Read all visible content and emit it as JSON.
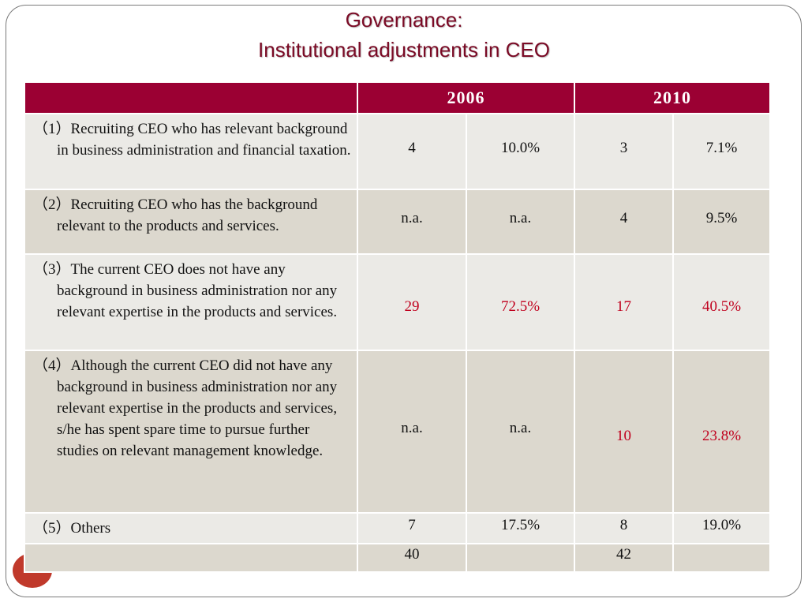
{
  "title": {
    "line1": "Governance:",
    "line2": "Institutional adjustments in CEO"
  },
  "table": {
    "headers": [
      "",
      "2006",
      "2010"
    ],
    "rows": [
      {
        "label": "（1）Recruiting CEO who has relevant background in business administration and financial taxation.",
        "c2006_count": "4",
        "c2006_pct": "10.0%",
        "c2010_count": "3",
        "c2010_pct": "7.1%"
      },
      {
        "label": "（2）Recruiting CEO who has the background relevant to the products and services.",
        "c2006_count": "n.a.",
        "c2006_pct": "n.a.",
        "c2010_count": "4",
        "c2010_pct": "9.5%"
      },
      {
        "label": "（3）The current CEO does not have any background in business administration nor any relevant expertise in the products and services.",
        "c2006_count": "29",
        "c2006_pct": "72.5%",
        "c2010_count": "17",
        "c2010_pct": "40.5%"
      },
      {
        "label": "（4）Although the current CEO did not have any background in business administration nor any relevant expertise in the products and services, s/he has spent spare time to pursue further studies on relevant management knowledge.",
        "c2006_count": "n.a.",
        "c2006_pct": "n.a.",
        "c2010_count": "10",
        "c2010_pct": "23.8%"
      },
      {
        "label": "（5）Others",
        "c2006_count": "7",
        "c2006_pct": "17.5%",
        "c2010_count": "8",
        "c2010_pct": "19.0%"
      },
      {
        "label": "",
        "c2006_count": "40",
        "c2006_pct": "",
        "c2010_count": "42",
        "c2010_pct": ""
      }
    ]
  },
  "colors": {
    "header_bg": "#9b0033",
    "title": "#7a0a25",
    "highlight_text": "#c0001d",
    "row_light": "#ebeae6",
    "row_dark": "#dcd8ce"
  }
}
